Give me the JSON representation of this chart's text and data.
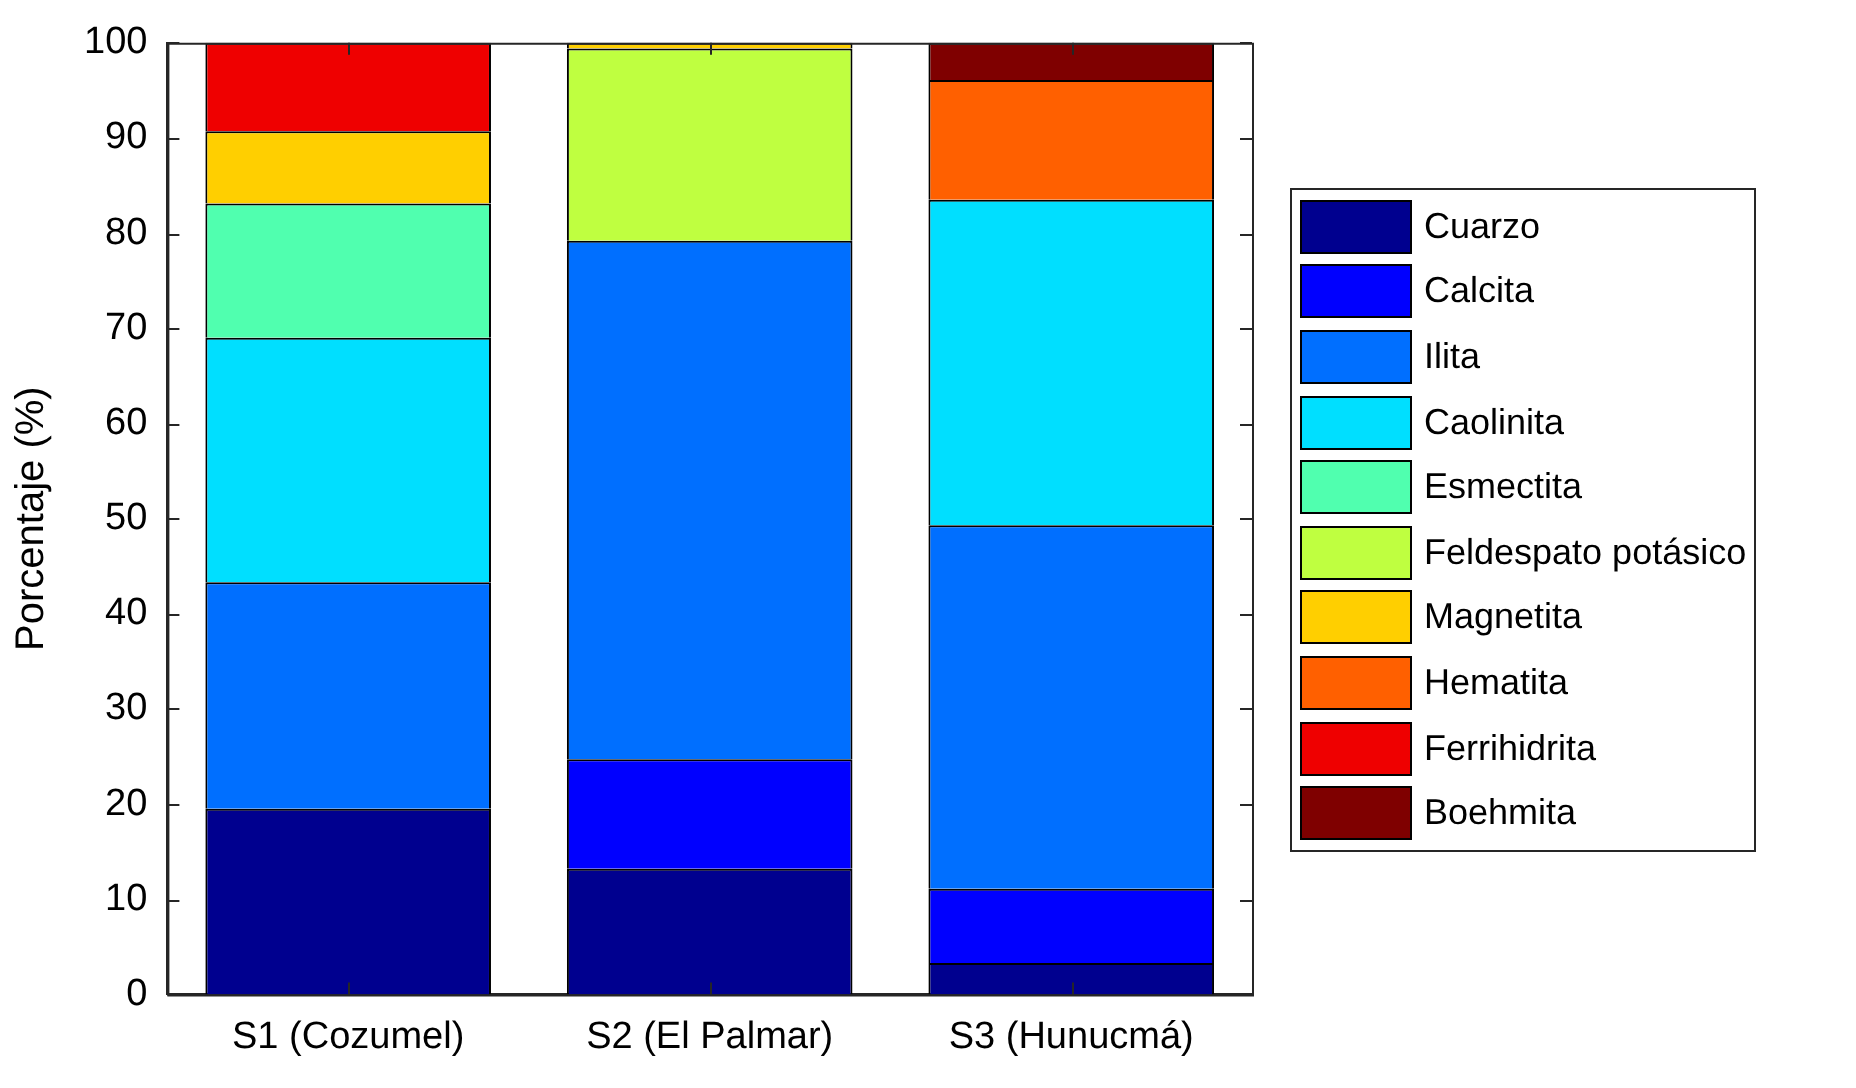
{
  "chart_data": {
    "type": "bar",
    "stacked": true,
    "ylabel": "Porcentaje (%)",
    "categories": [
      "S1 (Cozumel)",
      "S2 (El Palmar)",
      "S3 (Hunucmá)"
    ],
    "ylim": [
      0,
      100
    ],
    "yticks": [
      0,
      10,
      20,
      30,
      40,
      50,
      60,
      70,
      80,
      90,
      100
    ],
    "grid": false,
    "legend": "right",
    "series": [
      {
        "name": "Cuarzo",
        "color": "#00008f",
        "values": [
          19.5,
          13.2,
          3.3
        ]
      },
      {
        "name": "Calcita",
        "color": "#0000ff",
        "values": [
          null,
          11.5,
          7.8
        ]
      },
      {
        "name": "Ilita",
        "color": "#006fff",
        "values": [
          23.8,
          54.5,
          38.2
        ]
      },
      {
        "name": "Caolinita",
        "color": "#00dfff",
        "values": [
          25.7,
          null,
          34.2
        ]
      },
      {
        "name": "Esmectita",
        "color": "#50ffaf",
        "values": [
          14.1,
          null,
          null
        ]
      },
      {
        "name": "Feldespato potásico",
        "color": "#bfff40",
        "values": [
          null,
          20.2,
          null
        ]
      },
      {
        "name": "Magnetita",
        "color": "#ffcf00",
        "values": [
          7.6,
          0.6,
          null
        ]
      },
      {
        "name": "Hematita",
        "color": "#ff6000",
        "values": [
          null,
          null,
          12.6
        ]
      },
      {
        "name": "Ferrihidrita",
        "color": "#ef0000",
        "values": [
          9.3,
          null,
          null
        ]
      },
      {
        "name": "Boehmita",
        "color": "#7f0000",
        "values": [
          null,
          null,
          3.9
        ]
      }
    ]
  }
}
